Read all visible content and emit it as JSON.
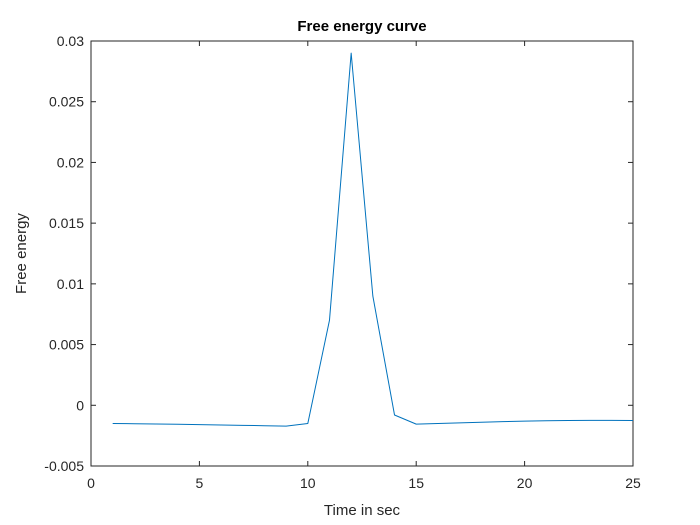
{
  "chart_data": {
    "type": "line",
    "title": "Free energy curve",
    "xlabel": "Time in sec",
    "ylabel": "Free energy",
    "xlim": [
      0,
      25
    ],
    "ylim": [
      -0.005,
      0.03
    ],
    "xticks": [
      0,
      5,
      10,
      15,
      20,
      25
    ],
    "xtick_labels": [
      "0",
      "5",
      "10",
      "15",
      "20",
      "25"
    ],
    "yticks": [
      -0.005,
      0,
      0.005,
      0.01,
      0.015,
      0.02,
      0.025,
      0.03
    ],
    "ytick_labels": [
      "-0.005",
      "0",
      "0.005",
      "0.01",
      "0.015",
      "0.02",
      "0.025",
      "0.03"
    ],
    "grid": false,
    "box": true,
    "colors": {
      "line": "#0072bd",
      "axes": "#262626",
      "background": "#ffffff"
    },
    "series": [
      {
        "x": [
          1,
          2,
          3,
          4,
          5,
          6,
          7,
          8,
          9,
          10,
          11,
          12,
          13,
          14,
          15,
          16,
          17,
          18,
          19,
          20,
          21,
          22,
          23,
          24,
          25
        ],
        "y": [
          -0.0015,
          -0.00152,
          -0.00154,
          -0.00156,
          -0.00159,
          -0.00162,
          -0.00165,
          -0.00168,
          -0.00172,
          -0.0015,
          0.007,
          0.029,
          0.009,
          -0.0008,
          -0.00155,
          -0.0015,
          -0.00145,
          -0.0014,
          -0.00135,
          -0.0013,
          -0.00127,
          -0.00125,
          -0.00124,
          -0.00124,
          -0.00125
        ]
      }
    ]
  }
}
